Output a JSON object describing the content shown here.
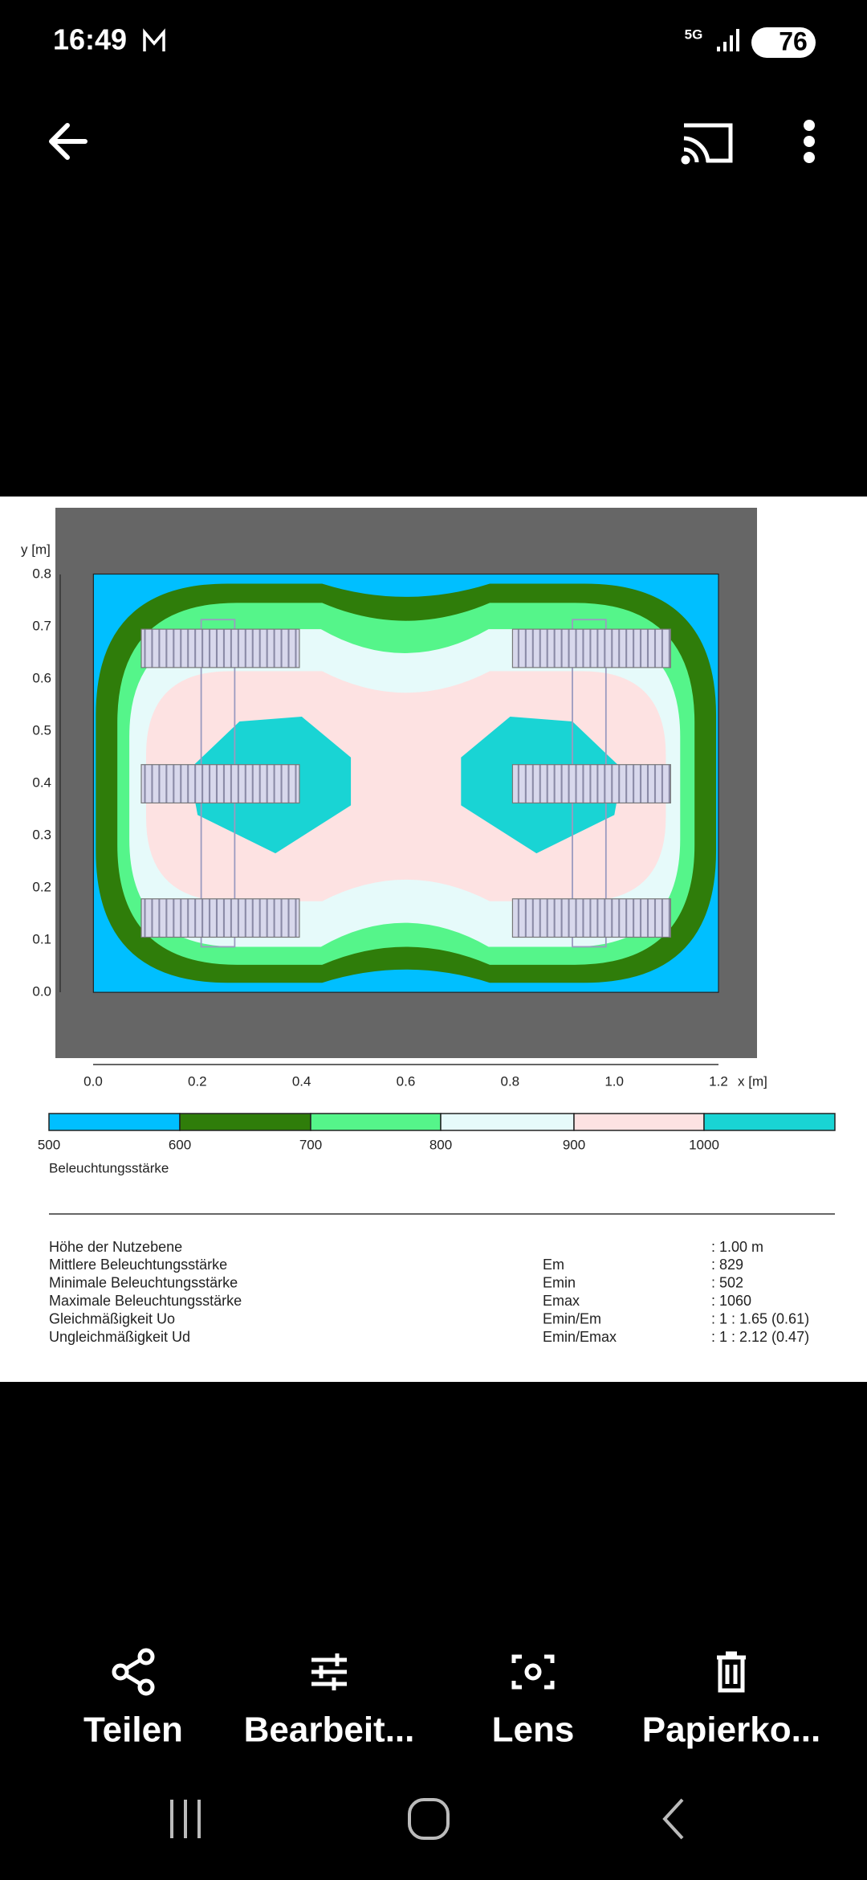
{
  "status_bar": {
    "time": "16:49",
    "network": "5G",
    "battery": "76"
  },
  "image": {
    "y_axis_label": "y [m]",
    "x_axis_label": "x [m]",
    "y_ticks": [
      "0.8",
      "0.7",
      "0.6",
      "0.5",
      "0.4",
      "0.3",
      "0.2",
      "0.1",
      "0.0"
    ],
    "x_ticks": [
      "0.0",
      "0.2",
      "0.4",
      "0.6",
      "0.8",
      "1.0",
      "1.2"
    ],
    "legend_ticks": [
      "500",
      "600",
      "700",
      "800",
      "900",
      "1000"
    ],
    "legend_title": "Beleuchtungsstärke",
    "stats": [
      {
        "label": "Höhe der Nutzebene",
        "symbol": "",
        "value": ": 1.00 m"
      },
      {
        "label": "Mittlere Beleuchtungsstärke",
        "symbol": "Em",
        "value": ": 829"
      },
      {
        "label": "Minimale Beleuchtungsstärke",
        "symbol": "Emin",
        "value": ": 502"
      },
      {
        "label": "Maximale Beleuchtungsstärke",
        "symbol": "Emax",
        "value": ": 1060"
      },
      {
        "label": "Gleichmäßigkeit Uo",
        "symbol": "Emin/Em",
        "value": ": 1 : 1.65 (0.61)"
      },
      {
        "label": "Ungleichmäßigkeit Ud",
        "symbol": "Emin/Emax",
        "value": ": 1 : 2.12 (0.47)"
      }
    ]
  },
  "actions": [
    "Teilen",
    "Bearbeit...",
    "Lens",
    "Papierko..."
  ]
}
